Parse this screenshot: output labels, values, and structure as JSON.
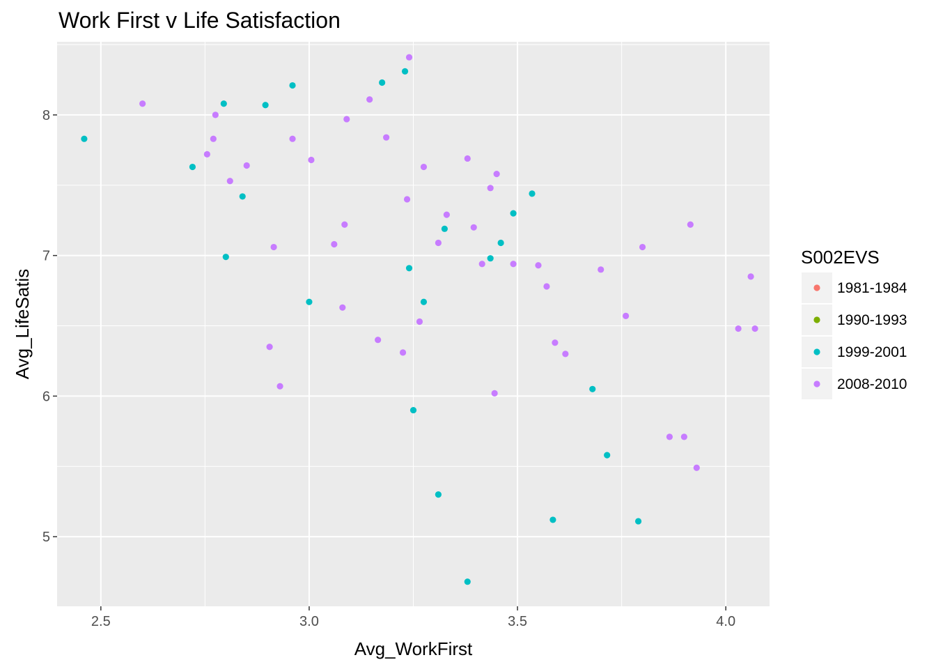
{
  "chart_data": {
    "type": "scatter",
    "title": "Work First v Life Satisfaction",
    "xlabel": "Avg_WorkFirst",
    "ylabel": "Avg_LifeSatis",
    "xlim": [
      2.395,
      4.105
    ],
    "ylim": [
      4.505,
      8.52
    ],
    "xticks": [
      2.5,
      3.0,
      3.5,
      4.0
    ],
    "xtick_labels": [
      "2.5",
      "3.0",
      "3.5",
      "4.0"
    ],
    "yticks": [
      5,
      6,
      7,
      8
    ],
    "ytick_labels": [
      "5",
      "6",
      "7",
      "8"
    ],
    "grid": true,
    "legend": {
      "title": "S002EVS",
      "position": "right",
      "entries": [
        {
          "label": "1981-1984",
          "color": "#F8766D"
        },
        {
          "label": "1990-1993",
          "color": "#7CAE00"
        },
        {
          "label": "1999-2001",
          "color": "#00BFC4"
        },
        {
          "label": "2008-2010",
          "color": "#C77CFF"
        }
      ]
    },
    "series": [
      {
        "name": "1981-1984",
        "color": "#F8766D",
        "points": []
      },
      {
        "name": "1990-1993",
        "color": "#7CAE00",
        "points": []
      },
      {
        "name": "1999-2001",
        "color": "#00BFC4",
        "points": [
          [
            2.46,
            7.83
          ],
          [
            2.72,
            7.63
          ],
          [
            2.795,
            8.08
          ],
          [
            2.8,
            6.99
          ],
          [
            2.84,
            7.42
          ],
          [
            2.895,
            8.07
          ],
          [
            2.96,
            8.21
          ],
          [
            3.0,
            6.67
          ],
          [
            3.175,
            8.23
          ],
          [
            3.23,
            8.31
          ],
          [
            3.24,
            6.91
          ],
          [
            3.25,
            5.9
          ],
          [
            3.275,
            6.67
          ],
          [
            3.31,
            5.3
          ],
          [
            3.325,
            7.19
          ],
          [
            3.38,
            4.68
          ],
          [
            3.435,
            6.98
          ],
          [
            3.46,
            7.09
          ],
          [
            3.49,
            7.3
          ],
          [
            3.535,
            7.44
          ],
          [
            3.585,
            5.12
          ],
          [
            3.68,
            6.05
          ],
          [
            3.715,
            5.58
          ],
          [
            3.79,
            5.11
          ]
        ]
      },
      {
        "name": "2008-2010",
        "color": "#C77CFF",
        "points": [
          [
            2.6,
            8.08
          ],
          [
            2.755,
            7.72
          ],
          [
            2.77,
            7.83
          ],
          [
            2.775,
            8.0
          ],
          [
            2.81,
            7.53
          ],
          [
            2.85,
            7.64
          ],
          [
            2.905,
            6.35
          ],
          [
            2.915,
            7.06
          ],
          [
            2.93,
            6.07
          ],
          [
            2.96,
            7.83
          ],
          [
            3.005,
            7.68
          ],
          [
            3.06,
            7.08
          ],
          [
            3.08,
            6.63
          ],
          [
            3.085,
            7.22
          ],
          [
            3.09,
            7.97
          ],
          [
            3.145,
            8.11
          ],
          [
            3.165,
            6.4
          ],
          [
            3.185,
            7.84
          ],
          [
            3.225,
            6.31
          ],
          [
            3.235,
            7.4
          ],
          [
            3.24,
            8.41
          ],
          [
            3.265,
            6.53
          ],
          [
            3.275,
            7.63
          ],
          [
            3.31,
            7.09
          ],
          [
            3.33,
            7.29
          ],
          [
            3.38,
            7.69
          ],
          [
            3.395,
            7.2
          ],
          [
            3.415,
            6.94
          ],
          [
            3.435,
            7.48
          ],
          [
            3.445,
            6.02
          ],
          [
            3.45,
            7.58
          ],
          [
            3.49,
            6.94
          ],
          [
            3.55,
            6.93
          ],
          [
            3.57,
            6.78
          ],
          [
            3.59,
            6.38
          ],
          [
            3.615,
            6.3
          ],
          [
            3.7,
            6.9
          ],
          [
            3.76,
            6.57
          ],
          [
            3.8,
            7.06
          ],
          [
            3.865,
            5.71
          ],
          [
            3.9,
            5.71
          ],
          [
            3.915,
            7.22
          ],
          [
            3.93,
            5.49
          ],
          [
            4.03,
            6.48
          ],
          [
            4.06,
            6.85
          ],
          [
            4.07,
            6.48
          ]
        ]
      }
    ]
  }
}
